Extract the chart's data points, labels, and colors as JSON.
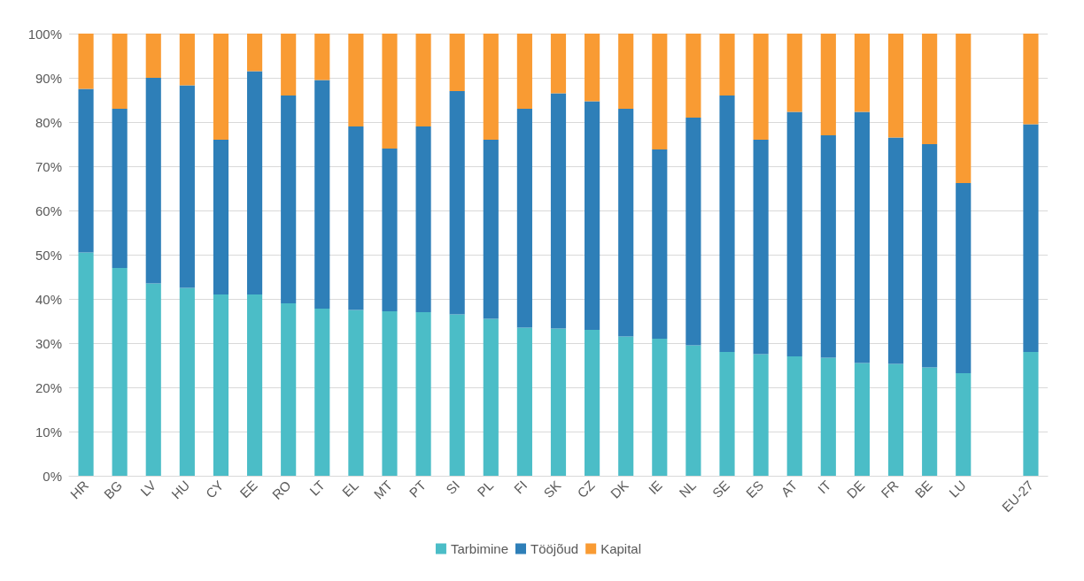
{
  "chart_data": {
    "type": "bar",
    "stacked": true,
    "categories": [
      "HR",
      "BG",
      "LV",
      "HU",
      "CY",
      "EE",
      "RO",
      "LT",
      "EL",
      "MT",
      "PT",
      "SI",
      "PL",
      "FI",
      "SK",
      "CZ",
      "DK",
      "IE",
      "NL",
      "SE",
      "ES",
      "AT",
      "IT",
      "DE",
      "FR",
      "BE",
      "LU",
      null,
      "EU-27"
    ],
    "series": [
      {
        "name": "Tarbimine",
        "color": "#4bbdc7",
        "values": [
          50.5,
          47,
          43.5,
          42.5,
          41,
          41,
          39,
          37.8,
          37.5,
          37.2,
          37,
          36.5,
          35.5,
          33.5,
          33.3,
          33,
          31.5,
          31,
          29.5,
          28,
          27.5,
          27,
          26.7,
          25.5,
          25.3,
          24.5,
          23.2,
          null,
          28
        ]
      },
      {
        "name": "Tööjõud",
        "color": "#2e7fb8",
        "values": [
          37,
          36,
          46.5,
          45.8,
          35,
          50.5,
          47,
          51.7,
          41.5,
          36.8,
          42,
          50.5,
          40.5,
          49.5,
          53.2,
          51.7,
          51.5,
          42.8,
          51.5,
          58,
          48.5,
          55.3,
          50.3,
          56.8,
          51.2,
          50.5,
          43,
          null,
          51.5
        ]
      },
      {
        "name": "Kapital",
        "color": "#f99b33",
        "values": [
          12.5,
          17,
          10,
          11.7,
          24,
          8.5,
          14,
          10.5,
          21,
          26,
          21,
          13,
          24,
          17,
          13.5,
          15.3,
          17,
          26.2,
          19,
          14,
          24,
          17.7,
          23,
          17.7,
          23.5,
          25,
          33.8,
          null,
          20.5
        ]
      }
    ],
    "ylim": [
      0,
      100
    ],
    "yticks": [
      {
        "value": 0,
        "label": "0%"
      },
      {
        "value": 10,
        "label": "10%"
      },
      {
        "value": 20,
        "label": "20%"
      },
      {
        "value": 30,
        "label": "30%"
      },
      {
        "value": 40,
        "label": "40%"
      },
      {
        "value": 50,
        "label": "50%"
      },
      {
        "value": 60,
        "label": "60%"
      },
      {
        "value": 70,
        "label": "70%"
      },
      {
        "value": 80,
        "label": "80%"
      },
      {
        "value": 90,
        "label": "90%"
      },
      {
        "value": 100,
        "label": "100%"
      }
    ],
    "grid": "y",
    "legend": "bottom"
  }
}
